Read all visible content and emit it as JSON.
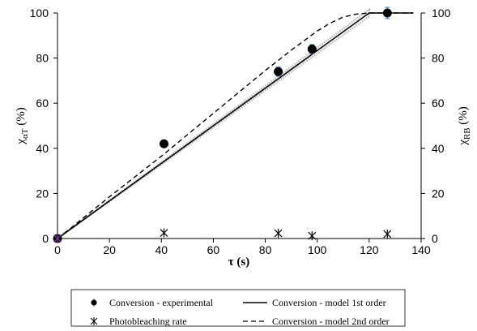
{
  "chart_data": {
    "type": "line",
    "title": "",
    "xlabel": "τ (s)",
    "ylabel_left": {
      "main": "χ",
      "sub": "αT",
      "suffix": " (%)"
    },
    "ylabel_right": {
      "main": "χ",
      "sub": "RB",
      "suffix": " (%)"
    },
    "xlim": [
      0,
      140
    ],
    "ylim": [
      0,
      100
    ],
    "x_ticks": [
      "0",
      "20",
      "40",
      "60",
      "80",
      "100",
      "120",
      "140"
    ],
    "y_ticks": [
      "0",
      "20",
      "40",
      "60",
      "80",
      "100"
    ],
    "grid": false,
    "legend_position": "bottom",
    "series": [
      {
        "name": "Conversion - experimental",
        "kind": "points",
        "color": "#000000",
        "errorbar_color": "#3a78c2",
        "x": [
          0,
          41,
          85,
          98,
          127
        ],
        "y": [
          0,
          42,
          74,
          84,
          100
        ],
        "err": [
          0,
          0,
          2,
          2,
          2.5
        ]
      },
      {
        "name": "Conversion - model 1st order",
        "kind": "solid",
        "color": "#000000",
        "x": [
          0,
          120,
          137
        ],
        "y": [
          0,
          100,
          100
        ]
      },
      {
        "name": "Photobleaching rate",
        "kind": "star",
        "color": "#000000",
        "x": [
          0,
          41,
          85,
          98,
          127
        ],
        "y": [
          0,
          2.5,
          2.3,
          1.2,
          2.0
        ]
      },
      {
        "name": "Conversion - model 2nd order",
        "kind": "dashed",
        "color": "#000000",
        "x": [
          0,
          5,
          10,
          20,
          30,
          40,
          50,
          60,
          70,
          80,
          90,
          100,
          105,
          110,
          115,
          120,
          125,
          130,
          137
        ],
        "y": [
          0,
          4.5,
          9.2,
          18.5,
          27.5,
          36.5,
          46.0,
          55.5,
          65.0,
          74.5,
          83.5,
          92.0,
          95.5,
          98.2,
          99.5,
          100,
          100,
          100,
          100
        ]
      }
    ],
    "band": {
      "color": "#b5b5b5",
      "x": [
        0,
        120
      ],
      "y_low": [
        0,
        98.5
      ],
      "y_high": [
        0,
        101.5
      ]
    }
  }
}
